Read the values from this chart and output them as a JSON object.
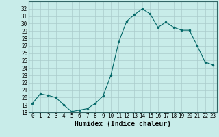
{
  "x": [
    0,
    1,
    2,
    3,
    4,
    5,
    6,
    7,
    8,
    9,
    10,
    11,
    12,
    13,
    14,
    15,
    16,
    17,
    18,
    19,
    20,
    21,
    22,
    23
  ],
  "y": [
    19.2,
    20.5,
    20.3,
    20.0,
    19.0,
    18.1,
    18.3,
    18.5,
    19.2,
    20.2,
    23.0,
    27.5,
    30.3,
    31.2,
    32.0,
    31.3,
    29.5,
    30.2,
    29.5,
    29.1,
    29.1,
    27.0,
    24.8,
    24.4
  ],
  "line_color": "#006666",
  "marker": "o",
  "marker_size": 2.0,
  "bg_color": "#c8ece9",
  "grid_color": "#aacccc",
  "xlabel": "Humidex (Indice chaleur)",
  "ylim": [
    18,
    33
  ],
  "xlim": [
    -0.5,
    23.5
  ],
  "yticks": [
    18,
    19,
    20,
    21,
    22,
    23,
    24,
    25,
    26,
    27,
    28,
    29,
    30,
    31,
    32
  ],
  "xticks": [
    0,
    1,
    2,
    3,
    4,
    5,
    6,
    7,
    8,
    9,
    10,
    11,
    12,
    13,
    14,
    15,
    16,
    17,
    18,
    19,
    20,
    21,
    22,
    23
  ],
  "tick_label_fontsize": 5.5,
  "xlabel_fontsize": 7.0,
  "linewidth": 0.8,
  "spine_color": "#336666"
}
